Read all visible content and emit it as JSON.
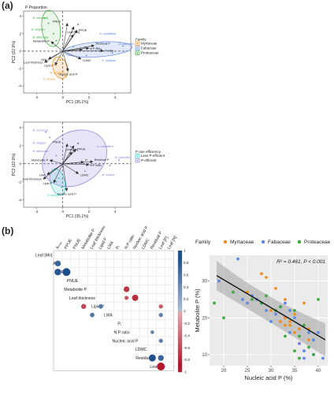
{
  "panels": {
    "a_label": "(a)",
    "b_label": "(b)"
  },
  "colors": {
    "myrtaceae": "#f08c1a",
    "fabaceae": "#5a86e6",
    "proteaceae": "#3aa63a",
    "less_efficient": "#3cc9c9",
    "p_efficient": "#8e7ddc",
    "arrow": "#333333",
    "corr_pos": "#1f4e8c",
    "corr_neg": "#b2182b"
  },
  "pca_top": {
    "title": "P Proportion",
    "xlabel": "PC1 (35.1%)",
    "ylabel": "PC2 (22.9%)",
    "legend_title": "Family",
    "legend_entries": [
      "Myrtaceae",
      "Fabaceae",
      "Proteaceae"
    ],
    "xticks": [
      "-2",
      "0",
      "2",
      "4"
    ],
    "yticks": [
      "4",
      "2",
      "0",
      "-2",
      "-4"
    ],
    "variable_labels": [
      "PNUE",
      "A",
      "PPUE",
      "Leaf [Mn]",
      "Metabolite P",
      "LMA",
      "Leaf thickness",
      "Lipid P",
      "Pᵢ",
      "Residual P",
      "N:P ratio",
      "P ratio",
      "LDMC",
      "Nucleic acid P"
    ],
    "species_labels": [
      "B. menziesii",
      "B. elegans",
      "B. attenuata",
      "A. rostellifera",
      "B. pulchella",
      "H. incana",
      "E. todtiana",
      "M. scabra"
    ]
  },
  "pca_bottom": {
    "xlabel": "PC1 (35.1%)",
    "ylabel": "PC2 (22.9%)",
    "legend_title": "P use efficiency",
    "legend_entries": [
      "Less P-efficient",
      "P-efficient"
    ],
    "xticks": [
      "-2",
      "0",
      "2",
      "4"
    ],
    "yticks": [
      "4",
      "2",
      "0",
      "-2",
      "-4"
    ],
    "variable_labels": [
      "PNUE",
      "A",
      "PPUE",
      "Leaf [Mn]",
      "Metabolite P",
      "LMA",
      "Leaf thickness",
      "Lipid P",
      "Pᵢ",
      "Residual P",
      "N:P ratio",
      "LDMC",
      "Nucleic acid P"
    ],
    "species_labels": [
      "B. menziesii",
      "B. elegans",
      "B. attenuata",
      "A. rostellifera",
      "B. pulchella",
      "H. incana",
      "M. scabra"
    ]
  },
  "corr": {
    "row_labels": [
      "Leaf [Mn]",
      "Aₘₐₓ",
      "PPUE",
      "PNUE",
      "Metabolite P",
      "Leaf thickness",
      "Lipid P",
      "LMA",
      "Pᵢ",
      "N:P ratio",
      "Nucleic acid P",
      "LDMC",
      "Residual P",
      "Leaf [P]"
    ],
    "col_labels": [
      "Aₘₐₓ",
      "PPUE",
      "PNUE",
      "Metabolite P",
      "Leaf thickness",
      "Lipid P",
      "LMA",
      "Pᵢ",
      "N:P ratio",
      "Nucleic acid P",
      "LDMC",
      "Residual P",
      "Leaf [P]",
      "Leaf [N]"
    ],
    "colorbar_ticks": [
      "1",
      "0.8",
      "0.6",
      "0.4",
      "0.2",
      "0",
      "-0.2",
      "-0.4",
      "-0.6",
      "-0.8",
      "-1"
    ],
    "cells": [
      {
        "row": 1,
        "col": 0,
        "r": 0.7
      },
      {
        "row": 2,
        "col": 0,
        "r": 0.8
      },
      {
        "row": 2,
        "col": 1,
        "r": 0.95
      },
      {
        "row": 4,
        "col": 8,
        "r": -0.7
      },
      {
        "row": 5,
        "col": 8,
        "r": -0.5
      },
      {
        "row": 5,
        "col": 9,
        "r": -0.75
      },
      {
        "row": 6,
        "col": 3,
        "r": -0.6
      },
      {
        "row": 6,
        "col": 5,
        "r": 0.55
      },
      {
        "row": 6,
        "col": 12,
        "r": -0.5
      },
      {
        "row": 7,
        "col": 4,
        "r": 0.55
      },
      {
        "row": 7,
        "col": 12,
        "r": 0.5
      },
      {
        "row": 9,
        "col": 11,
        "r": 0.45
      },
      {
        "row": 10,
        "col": 12,
        "r": 0.5
      },
      {
        "row": 12,
        "col": 11,
        "r": 0.85
      },
      {
        "row": 12,
        "col": 12,
        "r": 0.7
      },
      {
        "row": 13,
        "col": 12,
        "r": -0.95
      }
    ]
  },
  "chart_data": {
    "type": "scatter",
    "xlabel": "Nucleic acid P (%)",
    "ylabel": "Metabolite P (%)",
    "legend_title": "Family",
    "annotation": "R² = 0.461, P < 0.001",
    "xlim": [
      17,
      42
    ],
    "ylim": [
      7,
      37
    ],
    "xticks": [
      20,
      25,
      30,
      35,
      40
    ],
    "yticks": [
      10,
      20,
      30
    ],
    "grid": true,
    "legend_position": "top",
    "series": [
      {
        "name": "Myrtaceae",
        "points": [
          [
            25,
            27
          ],
          [
            28,
            32
          ],
          [
            29,
            31
          ],
          [
            30,
            22
          ],
          [
            31,
            28
          ],
          [
            32,
            19
          ],
          [
            33,
            20
          ],
          [
            33,
            25
          ],
          [
            34,
            18
          ],
          [
            34,
            19
          ],
          [
            35,
            21
          ],
          [
            35,
            16
          ],
          [
            36,
            17
          ],
          [
            36,
            13
          ],
          [
            37,
            24
          ],
          [
            38,
            17
          ],
          [
            38,
            14
          ],
          [
            33,
            18
          ]
        ]
      },
      {
        "name": "Fabaceae",
        "points": [
          [
            19,
            30
          ],
          [
            23,
            36
          ],
          [
            24,
            25
          ],
          [
            25,
            24
          ],
          [
            26,
            26
          ],
          [
            27,
            25
          ],
          [
            28,
            24
          ],
          [
            29,
            22
          ],
          [
            30,
            19
          ],
          [
            31,
            21
          ],
          [
            32,
            23
          ],
          [
            33,
            24
          ],
          [
            34,
            22
          ],
          [
            35,
            20
          ],
          [
            36,
            13
          ],
          [
            37,
            11
          ],
          [
            38,
            16
          ],
          [
            39,
            14
          ],
          [
            40,
            16
          ],
          [
            41,
            9
          ],
          [
            39,
            10
          ],
          [
            37,
            9
          ],
          [
            34,
            16
          ]
        ]
      },
      {
        "name": "Proteaceae",
        "points": [
          [
            18,
            24
          ],
          [
            20,
            20
          ],
          [
            22,
            27
          ],
          [
            26,
            25
          ],
          [
            28,
            24
          ],
          [
            29,
            26
          ],
          [
            31,
            22
          ],
          [
            32,
            23
          ],
          [
            33,
            15
          ],
          [
            35,
            11
          ],
          [
            35,
            22
          ],
          [
            36,
            15
          ],
          [
            37,
            18
          ],
          [
            38,
            12
          ],
          [
            40,
            25
          ],
          [
            39,
            10
          ],
          [
            36,
            9
          ]
        ]
      }
    ],
    "fit_line": {
      "x": [
        18.5,
        41.5
      ],
      "y": [
        31.5,
        14.0
      ]
    }
  }
}
